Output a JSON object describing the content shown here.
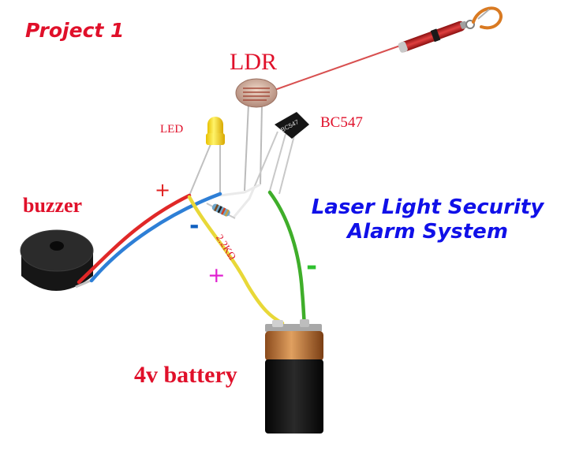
{
  "title": {
    "project": "Project 1",
    "line1": "Laser Light Security",
    "line2": "Alarm System"
  },
  "components": {
    "ldr": "LDR",
    "led": "LED",
    "transistor": "BC547",
    "buzzer": "buzzer",
    "resistor": "2.2KΩ",
    "battery": "4v battery",
    "transistor_marking": "BC547"
  },
  "polarity": {
    "buzzer_plus": "+",
    "buzzer_minus": "-",
    "battery_plus": "+",
    "battery_minus": "-"
  },
  "colors": {
    "title_blue": "#1010e8",
    "label_red": "#e0102a",
    "wire_red": "#e02828",
    "wire_blue": "#2e7fd6",
    "wire_yellow": "#e8d838",
    "wire_green": "#3fae2a",
    "laser_beam": "#d85050",
    "plus_magenta": "#e020d0",
    "minus_green": "#30c030"
  },
  "icons": [
    "laser-pointer-icon",
    "ldr-icon",
    "led-icon",
    "transistor-icon",
    "buzzer-icon",
    "resistor-icon",
    "battery-icon"
  ]
}
